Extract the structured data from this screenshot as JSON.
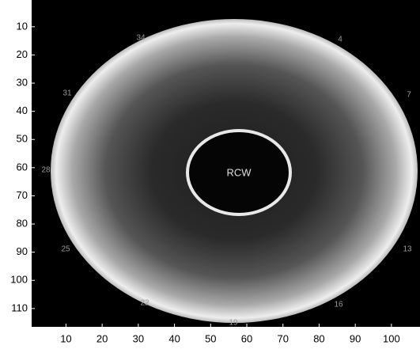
{
  "chart_data": {
    "type": "image",
    "xlim": [
      0.5,
      107.9
    ],
    "ylim": [
      0.5,
      116.5
    ],
    "xticks": [
      10,
      20,
      30,
      40,
      50,
      60,
      70,
      80,
      90,
      100
    ],
    "yticks": [
      10,
      20,
      30,
      40,
      50,
      60,
      70,
      80,
      90,
      100,
      110
    ],
    "center_label": "RCW",
    "annotations": [
      "34",
      "4",
      "7",
      "13",
      "16",
      "19",
      "22",
      "25",
      "28",
      "31"
    ]
  }
}
